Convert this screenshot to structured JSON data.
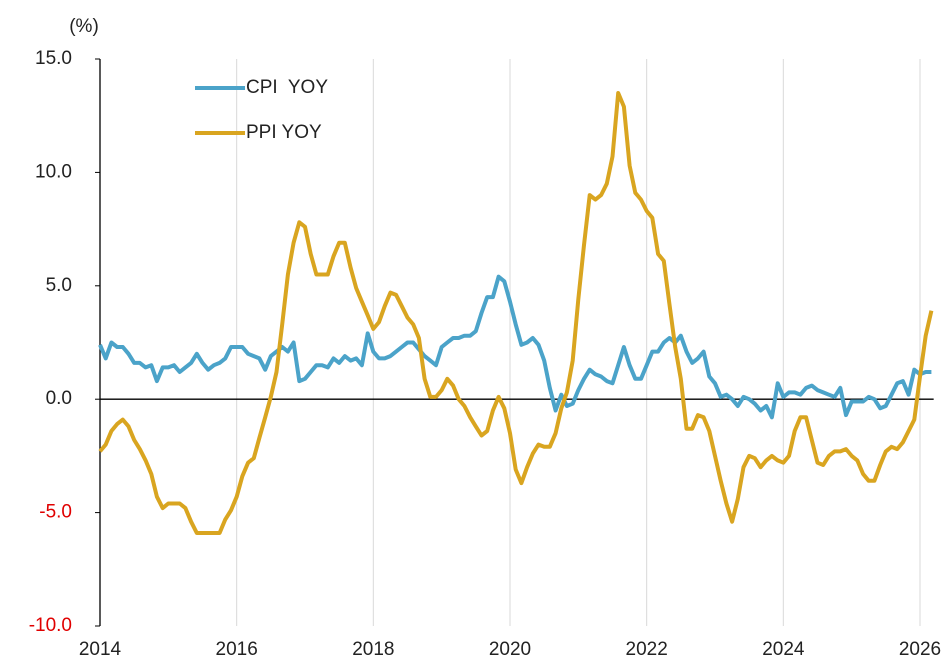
{
  "chart_data": {
    "type": "line",
    "y_axis_label": "(%)",
    "x": [
      2014,
      2014.083,
      2014.167,
      2014.25,
      2014.333,
      2014.417,
      2014.5,
      2014.583,
      2014.667,
      2014.75,
      2014.833,
      2014.917,
      2015,
      2015.083,
      2015.167,
      2015.25,
      2015.333,
      2015.417,
      2015.5,
      2015.583,
      2015.667,
      2015.75,
      2015.833,
      2015.917,
      2016,
      2016.083,
      2016.167,
      2016.25,
      2016.333,
      2016.417,
      2016.5,
      2016.583,
      2016.667,
      2016.75,
      2016.833,
      2016.917,
      2017,
      2017.083,
      2017.167,
      2017.25,
      2017.333,
      2017.417,
      2017.5,
      2017.583,
      2017.667,
      2017.75,
      2017.833,
      2017.917,
      2018,
      2018.083,
      2018.167,
      2018.25,
      2018.333,
      2018.417,
      2018.5,
      2018.583,
      2018.667,
      2018.75,
      2018.833,
      2018.917,
      2019,
      2019.083,
      2019.167,
      2019.25,
      2019.333,
      2019.417,
      2019.5,
      2019.583,
      2019.667,
      2019.75,
      2019.833,
      2019.917,
      2020,
      2020.083,
      2020.167,
      2020.25,
      2020.333,
      2020.417,
      2020.5,
      2020.583,
      2020.667,
      2020.75,
      2020.833,
      2020.917,
      2021,
      2021.083,
      2021.167,
      2021.25,
      2021.333,
      2021.417,
      2021.5,
      2021.583,
      2021.667,
      2021.75,
      2021.833,
      2021.917,
      2022,
      2022.083,
      2022.167,
      2022.25,
      2022.333,
      2022.417,
      2022.5,
      2022.583,
      2022.667,
      2022.75,
      2022.833,
      2022.917,
      2023,
      2023.083,
      2023.167,
      2023.25,
      2023.333,
      2023.417,
      2023.5,
      2023.583,
      2023.667,
      2023.75,
      2023.833,
      2023.917,
      2024,
      2024.083,
      2024.167,
      2024.25,
      2024.333,
      2024.417,
      2024.5,
      2024.583,
      2024.667,
      2024.75,
      2024.833,
      2024.917,
      2025,
      2025.083,
      2025.167,
      2025.25,
      2025.333,
      2025.417,
      2025.5,
      2025.583,
      2025.667,
      2025.75,
      2025.833,
      2025.917,
      2026,
      2026.083,
      2026.167
    ],
    "series": [
      {
        "name": "CPI  YOY",
        "color": "#4ba3c9",
        "values": [
          2.4,
          1.8,
          2.5,
          2.3,
          2.3,
          2.0,
          1.6,
          1.6,
          1.4,
          1.5,
          0.8,
          1.4,
          1.4,
          1.5,
          1.2,
          1.4,
          1.6,
          2.0,
          1.6,
          1.3,
          1.5,
          1.6,
          1.8,
          2.3,
          2.3,
          2.3,
          2.0,
          1.9,
          1.8,
          1.3,
          1.9,
          2.1,
          2.3,
          2.1,
          2.5,
          0.8,
          0.9,
          1.2,
          1.5,
          1.5,
          1.4,
          1.8,
          1.6,
          1.9,
          1.7,
          1.8,
          1.5,
          2.9,
          2.1,
          1.8,
          1.8,
          1.9,
          2.1,
          2.3,
          2.5,
          2.5,
          2.2,
          1.9,
          1.7,
          1.5,
          2.3,
          2.5,
          2.7,
          2.7,
          2.8,
          2.8,
          3.0,
          3.8,
          4.5,
          4.5,
          5.4,
          5.2,
          4.3,
          3.3,
          2.4,
          2.5,
          2.7,
          2.4,
          1.7,
          0.5,
          -0.5,
          0.2,
          -0.3,
          -0.2,
          0.4,
          0.9,
          1.3,
          1.1,
          1.0,
          0.8,
          0.7,
          1.5,
          2.3,
          1.5,
          0.9,
          0.9,
          1.5,
          2.1,
          2.1,
          2.5,
          2.7,
          2.5,
          2.8,
          2.1,
          1.6,
          1.8,
          2.1,
          1.0,
          0.7,
          0.1,
          0.2,
          0.0,
          -0.3,
          0.1,
          0.0,
          -0.2,
          -0.5,
          -0.3,
          -0.8,
          0.7,
          0.1,
          0.3,
          0.3,
          0.2,
          0.5,
          0.6,
          0.4,
          0.3,
          0.2,
          0.1,
          0.5,
          -0.7,
          -0.1,
          -0.1,
          -0.1,
          0.1,
          0.0,
          -0.4,
          -0.3,
          0.2,
          0.7,
          0.8,
          0.2,
          1.3,
          1.1,
          1.2,
          1.2
        ]
      },
      {
        "name": "PPI YOY",
        "color": "#d9a520",
        "values": [
          -2.3,
          -2.0,
          -1.4,
          -1.1,
          -0.9,
          -1.2,
          -1.8,
          -2.2,
          -2.7,
          -3.3,
          -4.3,
          -4.8,
          -4.6,
          -4.6,
          -4.6,
          -4.8,
          -5.4,
          -5.9,
          -5.9,
          -5.9,
          -5.9,
          -5.9,
          -5.3,
          -4.9,
          -4.3,
          -3.4,
          -2.8,
          -2.6,
          -1.7,
          -0.8,
          0.1,
          1.2,
          3.3,
          5.5,
          6.9,
          7.8,
          7.6,
          6.4,
          5.5,
          5.5,
          5.5,
          6.3,
          6.9,
          6.9,
          5.8,
          4.9,
          4.3,
          3.7,
          3.1,
          3.4,
          4.1,
          4.7,
          4.6,
          4.1,
          3.6,
          3.3,
          2.7,
          0.9,
          0.1,
          0.1,
          0.4,
          0.9,
          0.6,
          0.0,
          -0.3,
          -0.8,
          -1.2,
          -1.6,
          -1.4,
          -0.5,
          0.1,
          -0.4,
          -1.5,
          -3.1,
          -3.7,
          -3.0,
          -2.4,
          -2.0,
          -2.1,
          -2.1,
          -1.5,
          -0.4,
          0.3,
          1.7,
          4.4,
          6.8,
          9.0,
          8.8,
          9.0,
          9.5,
          10.7,
          13.5,
          12.9,
          10.3,
          9.1,
          8.8,
          8.3,
          8.0,
          6.4,
          6.1,
          4.2,
          2.3,
          0.9,
          -1.3,
          -1.3,
          -0.7,
          -0.8,
          -1.4,
          -2.5,
          -3.6,
          -4.6,
          -5.4,
          -4.4,
          -3.0,
          -2.5,
          -2.6,
          -3.0,
          -2.7,
          -2.5,
          -2.7,
          -2.8,
          -2.5,
          -1.4,
          -0.8,
          -0.8,
          -1.8,
          -2.8,
          -2.9,
          -2.5,
          -2.3,
          -2.3,
          -2.2,
          -2.5,
          -2.7,
          -3.3,
          -3.6,
          -3.6,
          -2.9,
          -2.3,
          -2.1,
          -2.2,
          -1.9,
          -1.4,
          -0.9,
          1.0,
          2.8,
          3.9
        ]
      }
    ],
    "xlim": [
      2014,
      2026.2
    ],
    "xticks": [
      2014,
      2016,
      2018,
      2020,
      2022,
      2024,
      2026
    ],
    "ylim": [
      -10,
      15
    ],
    "yticks": [
      {
        "value": -10,
        "label": "-10.0"
      },
      {
        "value": -5,
        "label": "-5.0"
      },
      {
        "value": 0,
        "label": "0.0"
      },
      {
        "value": 5,
        "label": "5.0"
      },
      {
        "value": 10,
        "label": "10.0"
      },
      {
        "value": 15,
        "label": "15.0"
      }
    ],
    "grid": "x",
    "legend": "upper left"
  }
}
